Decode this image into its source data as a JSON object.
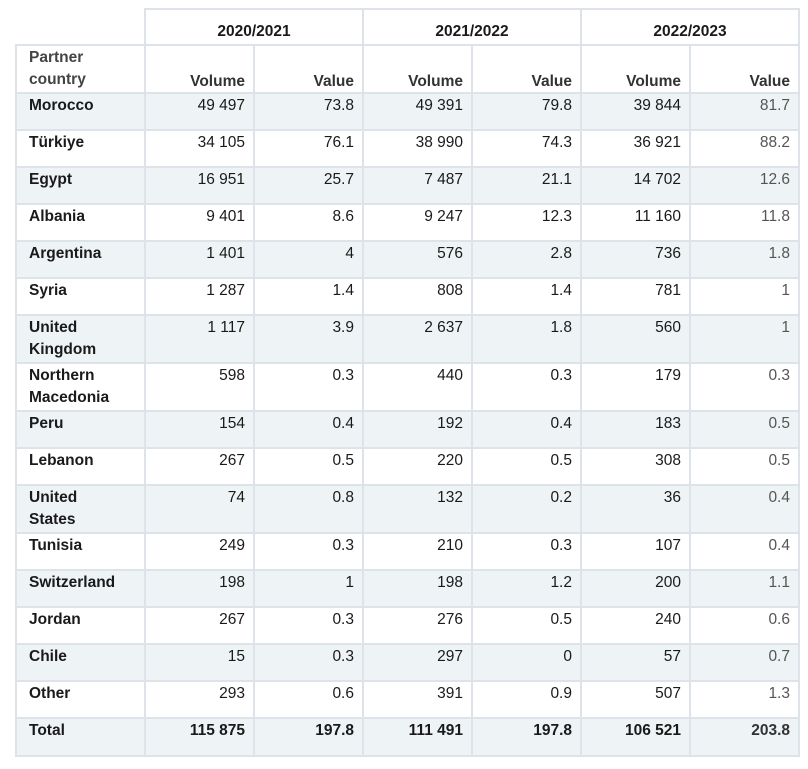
{
  "table": {
    "years": [
      "2020/2021",
      "2021/2022",
      "2022/2023"
    ],
    "country_header_line1": "Partner",
    "country_header_line2": "country",
    "volume_label": "Volume",
    "value_label": "Value",
    "rows": [
      {
        "country": [
          "Morocco"
        ],
        "values": [
          "49 497",
          "73.8",
          "49 391",
          "79.8",
          "39 844",
          "81.7"
        ]
      },
      {
        "country": [
          "Türkiye"
        ],
        "values": [
          "34 105",
          "76.1",
          "38 990",
          "74.3",
          "36 921",
          "88.2"
        ]
      },
      {
        "country": [
          "Egypt"
        ],
        "values": [
          "16 951",
          "25.7",
          "7 487",
          "21.1",
          "14 702",
          "12.6"
        ]
      },
      {
        "country": [
          "Albania"
        ],
        "values": [
          "9 401",
          "8.6",
          "9 247",
          "12.3",
          "11 160",
          "11.8"
        ]
      },
      {
        "country": [
          "Argentina"
        ],
        "values": [
          "1 401",
          "4",
          "576",
          "2.8",
          "736",
          "1.8"
        ]
      },
      {
        "country": [
          "Syria"
        ],
        "values": [
          "1 287",
          "1.4",
          "808",
          "1.4",
          "781",
          "1"
        ]
      },
      {
        "country": [
          "United",
          "Kingdom"
        ],
        "values": [
          "1 117",
          "3.9",
          "2 637",
          "1.8",
          "560",
          "1"
        ]
      },
      {
        "country": [
          "Northern",
          "Macedonia"
        ],
        "values": [
          "598",
          "0.3",
          "440",
          "0.3",
          "179",
          "0.3"
        ]
      },
      {
        "country": [
          "Peru"
        ],
        "values": [
          "154",
          "0.4",
          "192",
          "0.4",
          "183",
          "0.5"
        ]
      },
      {
        "country": [
          "Lebanon"
        ],
        "values": [
          "267",
          "0.5",
          "220",
          "0.5",
          "308",
          "0.5"
        ]
      },
      {
        "country": [
          "United",
          "States"
        ],
        "values": [
          "74",
          "0.8",
          "132",
          "0.2",
          "36",
          "0.4"
        ]
      },
      {
        "country": [
          "Tunisia"
        ],
        "values": [
          "249",
          "0.3",
          "210",
          "0.3",
          "107",
          "0.4"
        ]
      },
      {
        "country": [
          "Switzerland"
        ],
        "values": [
          "198",
          "1",
          "198",
          "1.2",
          "200",
          "1.1"
        ]
      },
      {
        "country": [
          "Jordan"
        ],
        "values": [
          "267",
          "0.3",
          "276",
          "0.5",
          "240",
          "0.6"
        ]
      },
      {
        "country": [
          "Chile"
        ],
        "values": [
          "15",
          "0.3",
          "297",
          "0",
          "57",
          "0.7"
        ]
      },
      {
        "country": [
          "Other"
        ],
        "values": [
          "293",
          "0.6",
          "391",
          "0.9",
          "507",
          "1.3"
        ]
      }
    ],
    "total": {
      "country": [
        "Total"
      ],
      "values": [
        "115 875",
        "197.8",
        "111 491",
        "197.8",
        "106 521",
        "203.8"
      ]
    }
  }
}
